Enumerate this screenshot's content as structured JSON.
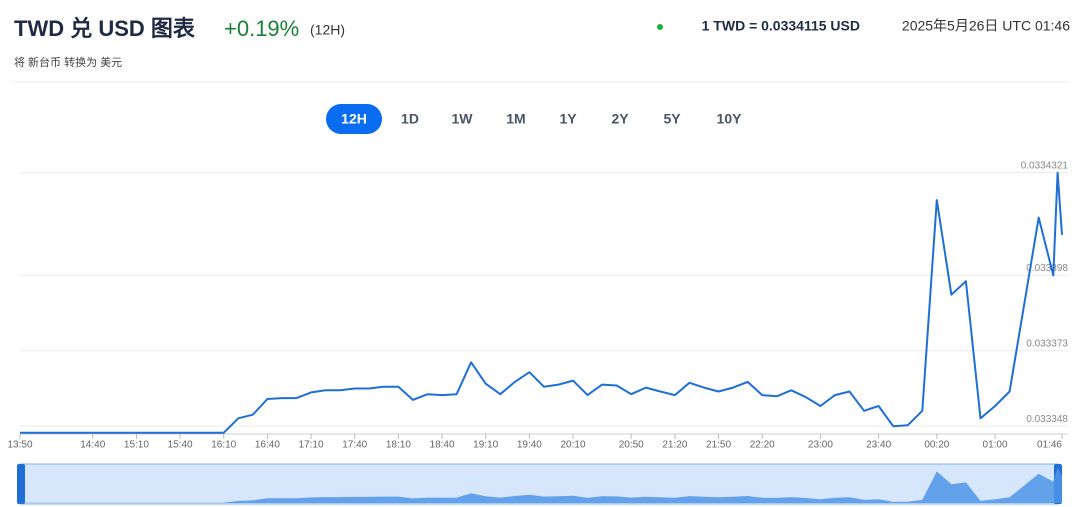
{
  "header": {
    "title": "TWD 兑 USD 图表",
    "change": "+0.19%",
    "period": "(12H)",
    "subtitle": "将 新台币 转换为 美元"
  },
  "rate": {
    "text": "1 TWD = 0.0334115 USD",
    "timestamp": "2025年5月26日 UTC 01:46"
  },
  "range_buttons": [
    "12H",
    "1D",
    "1W",
    "1M",
    "1Y",
    "2Y",
    "5Y",
    "10Y"
  ],
  "chart_data": {
    "type": "line",
    "color": "#1f6fd6",
    "x": [
      "13:50",
      "14:00",
      "14:10",
      "14:20",
      "14:30",
      "14:40",
      "14:50",
      "15:00",
      "15:10",
      "15:20",
      "15:30",
      "15:40",
      "15:50",
      "16:00",
      "16:10",
      "16:20",
      "16:30",
      "16:40",
      "16:50",
      "17:00",
      "17:10",
      "17:20",
      "17:30",
      "17:40",
      "17:50",
      "18:00",
      "18:10",
      "18:20",
      "18:30",
      "18:40",
      "18:50",
      "19:00",
      "19:10",
      "19:20",
      "19:30",
      "19:40",
      "19:50",
      "20:00",
      "20:10",
      "20:20",
      "20:30",
      "20:40",
      "20:50",
      "21:00",
      "21:10",
      "21:20",
      "21:30",
      "21:40",
      "21:50",
      "22:00",
      "22:10",
      "22:20",
      "22:30",
      "22:40",
      "22:50",
      "23:00",
      "23:10",
      "23:20",
      "23:30",
      "23:40",
      "23:50",
      "00:00",
      "00:10",
      "00:20",
      "00:30",
      "00:40",
      "00:50",
      "01:00",
      "01:10",
      "01:20",
      "01:30",
      "01:40",
      "01:43",
      "01:46"
    ],
    "values": [
      0.0333458,
      0.0333458,
      0.0333458,
      0.0333458,
      0.0333458,
      0.0333458,
      0.0333458,
      0.0333458,
      0.0333458,
      0.0333458,
      0.0333458,
      0.0333458,
      0.0333458,
      0.0333458,
      0.0333458,
      0.0333506,
      0.0333518,
      0.033357,
      0.0333573,
      0.0333573,
      0.0333592,
      0.0333599,
      0.0333599,
      0.0333605,
      0.0333605,
      0.0333611,
      0.0333611,
      0.0333567,
      0.0333586,
      0.0333583,
      0.0333586,
      0.0333692,
      0.0333621,
      0.0333586,
      0.0333627,
      0.0333659,
      0.0333611,
      0.0333618,
      0.0333631,
      0.0333583,
      0.0333618,
      0.0333615,
      0.0333586,
      0.0333608,
      0.0333595,
      0.0333583,
      0.0333624,
      0.0333608,
      0.0333595,
      0.0333608,
      0.0333627,
      0.0333583,
      0.0333579,
      0.0333599,
      0.0333576,
      0.0333547,
      0.0333583,
      0.0333595,
      0.0333531,
      0.0333547,
      0.033348,
      0.0333483,
      0.0333531,
      0.033423,
      0.0333916,
      0.0333961,
      0.0333506,
      0.0333547,
      0.0333595,
      0.0333884,
      0.0334172,
      0.033398,
      0.0334321,
      0.0334115
    ],
    "ylim": [
      0.0333454,
      0.0334363
    ],
    "yticks": [
      0.033348,
      0.033373,
      0.033398,
      0.0334321
    ],
    "xticks": [
      "13:50",
      "14:40",
      "15:10",
      "15:40",
      "16:10",
      "16:40",
      "17:10",
      "17:40",
      "18:10",
      "18:40",
      "19:10",
      "19:40",
      "20:10",
      "20:50",
      "21:20",
      "21:50",
      "22:20",
      "23:00",
      "23:40",
      "00:20",
      "01:00",
      "01:46"
    ],
    "grid": true
  }
}
